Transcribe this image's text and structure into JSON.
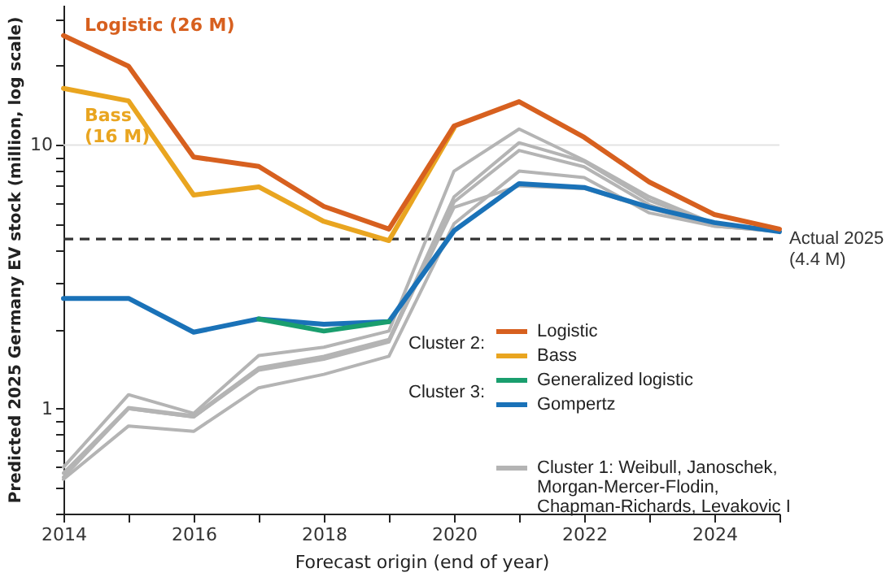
{
  "chart_data": {
    "type": "line",
    "xlabel": "Forecast origin (end of year)",
    "ylabel": "Predicted 2025 Germany EV stock (million, log scale)",
    "x": [
      2014,
      2015,
      2016,
      2017,
      2018,
      2019,
      2020,
      2021,
      2022,
      2023,
      2024,
      2025
    ],
    "series": [
      {
        "name": "Logistic",
        "color": "#d7601f",
        "values": [
          26,
          19.9,
          9.0,
          8.3,
          5.85,
          4.8,
          11.8,
          14.6,
          10.7,
          7.24,
          5.45,
          4.8
        ]
      },
      {
        "name": "Bass",
        "color": "#e9a520",
        "values": [
          16.4,
          14.7,
          6.46,
          6.94,
          5.13,
          4.34,
          11.6,
          null,
          null,
          null,
          null,
          null
        ]
      },
      {
        "name": "Generalized logistic",
        "color": "#1a9e6e",
        "values": [
          null,
          null,
          null,
          2.19,
          1.97,
          2.14,
          null,
          null,
          null,
          null,
          null,
          null
        ]
      },
      {
        "name": "Gompertz",
        "color": "#1a72b8",
        "values": [
          2.62,
          2.62,
          1.95,
          2.19,
          2.09,
          2.14,
          4.73,
          7.14,
          6.9,
          5.8,
          5.08,
          4.69
        ]
      },
      {
        "name": "Cluster 1: Weibull, Janoschek, Morgan-Mercer-Flodin, Chapman-Richards, Levakovic I",
        "color": "#b4b4b4",
        "values": [
          0.6,
          1.13,
          0.96,
          1.59,
          1.71,
          1.97,
          7.96,
          11.5,
          8.75,
          6.36,
          5.03,
          4.75
        ]
      },
      {
        "color": "#b4b4b4",
        "values": [
          0.57,
          1.01,
          0.94,
          1.43,
          1.58,
          1.83,
          6.36,
          10.2,
          8.66,
          6.16,
          5.0,
          4.75
        ]
      },
      {
        "color": "#b4b4b4",
        "values": [
          0.57,
          1.0,
          0.93,
          1.4,
          1.54,
          1.79,
          6.08,
          9.54,
          8.27,
          5.93,
          4.95,
          4.72
        ]
      },
      {
        "color": "#b4b4b4",
        "values": [
          0.54,
          0.86,
          0.82,
          1.2,
          1.35,
          1.58,
          5.03,
          7.96,
          7.53,
          5.53,
          4.92,
          4.7
        ]
      },
      {
        "color": "#b4b4b4",
        "values": [
          0.55,
          1.0,
          0.93,
          1.42,
          1.56,
          1.81,
          5.8,
          7.0,
          6.84,
          5.75,
          4.92,
          4.7
        ]
      }
    ],
    "log": true,
    "xlim": [
      2014,
      2025
    ],
    "ylim": [
      0.4,
      34
    ],
    "xticks": [
      2014,
      {
        "value": 2015,
        "label": null
      },
      2016,
      {
        "value": 2017,
        "label": null
      },
      2018,
      {
        "value": 2019,
        "label": null
      },
      2020,
      {
        "value": 2021,
        "label": null
      },
      2022,
      {
        "value": 2023,
        "label": null
      },
      2024,
      {
        "value": 2025,
        "label": null
      }
    ],
    "yticks": [
      {
        "value": 0.4,
        "label": null
      },
      {
        "value": 0.5,
        "label": null
      },
      {
        "value": 0.6,
        "label": null
      },
      {
        "value": 0.7,
        "label": null
      },
      {
        "value": 0.8,
        "label": null
      },
      {
        "value": 0.9,
        "label": null
      },
      1,
      {
        "value": 2,
        "label": null
      },
      {
        "value": 3,
        "label": null
      },
      {
        "value": 4,
        "label": null
      },
      {
        "value": 5,
        "label": null
      },
      {
        "value": 6,
        "label": null
      },
      {
        "value": 7,
        "label": null
      },
      {
        "value": 8,
        "label": null
      },
      {
        "value": 9,
        "label": null
      },
      10,
      {
        "value": 20,
        "label": null
      },
      {
        "value": 30,
        "label": null
      }
    ],
    "ref_lines": [
      {
        "axis": "y",
        "value": 10,
        "color": "#e3e3e3",
        "line_style": "solid"
      },
      {
        "axis": "y",
        "value": 4.4,
        "label": "Actual 2025\n(4.4 M)",
        "color": "#333333",
        "line_style": "dashed"
      }
    ],
    "annotations": [
      {
        "text": "Logistic  (26 M)",
        "x": 2014,
        "y": 26
      },
      {
        "text": "Bass\n(16 M)",
        "x": 2014,
        "y": 16.4
      },
      "Cluster 2:",
      "Cluster 3:"
    ],
    "legend": "bottom right",
    "marker": "none",
    "line_style": "solid"
  }
}
